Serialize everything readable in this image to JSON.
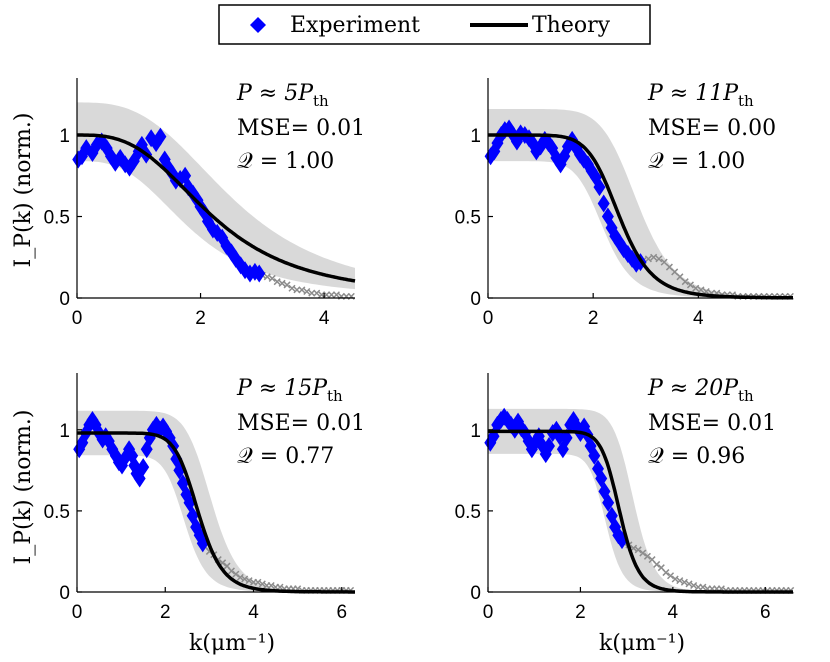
{
  "legend": {
    "experiment_label": "Experiment",
    "theory_label": "Theory"
  },
  "colors": {
    "experiment": "#0000ff",
    "theory": "#000000",
    "band": "#d9d9d9",
    "tail": "#8c8c8c"
  },
  "y_label": "I_P(k) (norm.)",
  "x_label": "k(μm⁻¹)",
  "chart_data": [
    {
      "type": "scatter",
      "panel": "top-left",
      "annotation": {
        "p_label": "P ≈ 5P",
        "p_sub": "th",
        "mse_label": "MSE= 0.01",
        "q_label": "𝒬 = 1.00"
      },
      "xlim": [
        0,
        4.5
      ],
      "ylim": [
        0,
        1.35
      ],
      "xticks": [
        0,
        2,
        4
      ],
      "yticks": [
        0,
        0.5,
        1
      ],
      "theory": {
        "A": 1.0,
        "k0": 2.2,
        "p": 3.0
      },
      "band": {
        "lower_scale": 0.84,
        "upper_scale": 1.2,
        "lower_shift": -0.35,
        "upper_shift": 0.35
      },
      "experiment": [
        [
          0.02,
          0.85
        ],
        [
          0.08,
          0.87
        ],
        [
          0.15,
          0.92
        ],
        [
          0.25,
          0.89
        ],
        [
          0.32,
          0.94
        ],
        [
          0.4,
          0.96
        ],
        [
          0.48,
          0.92
        ],
        [
          0.55,
          0.87
        ],
        [
          0.62,
          0.83
        ],
        [
          0.7,
          0.86
        ],
        [
          0.78,
          0.82
        ],
        [
          0.85,
          0.8
        ],
        [
          0.92,
          0.84
        ],
        [
          1.0,
          0.9
        ],
        [
          1.05,
          0.94
        ],
        [
          1.12,
          0.88
        ],
        [
          1.2,
          0.98
        ],
        [
          1.28,
          0.95
        ],
        [
          1.35,
          0.99
        ],
        [
          1.42,
          0.85
        ],
        [
          1.48,
          0.8
        ],
        [
          1.55,
          0.76
        ],
        [
          1.6,
          0.72
        ],
        [
          1.67,
          0.73
        ],
        [
          1.75,
          0.75
        ],
        [
          1.8,
          0.68
        ],
        [
          1.88,
          0.64
        ],
        [
          1.95,
          0.6
        ],
        [
          2.0,
          0.56
        ],
        [
          2.07,
          0.52
        ],
        [
          2.12,
          0.47
        ],
        [
          2.2,
          0.42
        ],
        [
          2.27,
          0.4
        ],
        [
          2.35,
          0.37
        ],
        [
          2.42,
          0.32
        ],
        [
          2.5,
          0.28
        ],
        [
          2.57,
          0.24
        ],
        [
          2.65,
          0.2
        ],
        [
          2.72,
          0.17
        ],
        [
          2.8,
          0.15
        ],
        [
          2.88,
          0.16
        ],
        [
          2.95,
          0.15
        ]
      ],
      "tail": [
        [
          3.0,
          0.14
        ],
        [
          3.08,
          0.13
        ],
        [
          3.16,
          0.12
        ],
        [
          3.24,
          0.1
        ],
        [
          3.32,
          0.09
        ],
        [
          3.4,
          0.08
        ],
        [
          3.48,
          0.06
        ],
        [
          3.56,
          0.05
        ],
        [
          3.64,
          0.05
        ],
        [
          3.72,
          0.04
        ],
        [
          3.8,
          0.03
        ],
        [
          3.88,
          0.03
        ],
        [
          3.96,
          0.02
        ],
        [
          4.04,
          0.02
        ],
        [
          4.12,
          0.02
        ],
        [
          4.2,
          0.02
        ],
        [
          4.28,
          0.01
        ],
        [
          4.36,
          0.01
        ],
        [
          4.44,
          0.01
        ]
      ]
    },
    {
      "type": "scatter",
      "panel": "top-right",
      "annotation": {
        "p_label": "P ≈ 11P",
        "p_sub": "th",
        "mse_label": "MSE= 0.00",
        "q_label": "𝒬 = 1.00"
      },
      "xlim": [
        0,
        5.8
      ],
      "ylim": [
        0,
        1.35
      ],
      "xticks": [
        0,
        2,
        4
      ],
      "yticks": [
        0,
        0.5,
        1
      ],
      "theory": {
        "A": 1.0,
        "k0": 2.5,
        "p": 8.0
      },
      "band": {
        "lower_scale": 0.84,
        "upper_scale": 1.16,
        "lower_shift": -0.3,
        "upper_shift": 0.35
      },
      "experiment": [
        [
          0.05,
          0.87
        ],
        [
          0.12,
          0.9
        ],
        [
          0.18,
          0.95
        ],
        [
          0.25,
          1.0
        ],
        [
          0.32,
          1.03
        ],
        [
          0.4,
          1.04
        ],
        [
          0.48,
          1.0
        ],
        [
          0.55,
          0.96
        ],
        [
          0.62,
          1.01
        ],
        [
          0.7,
          1.0
        ],
        [
          0.78,
          0.98
        ],
        [
          0.85,
          0.95
        ],
        [
          0.92,
          0.9
        ],
        [
          1.0,
          0.93
        ],
        [
          1.08,
          0.97
        ],
        [
          1.15,
          0.95
        ],
        [
          1.22,
          0.92
        ],
        [
          1.3,
          0.86
        ],
        [
          1.38,
          0.82
        ],
        [
          1.45,
          0.87
        ],
        [
          1.52,
          0.93
        ],
        [
          1.6,
          0.97
        ],
        [
          1.68,
          0.92
        ],
        [
          1.75,
          0.88
        ],
        [
          1.82,
          0.85
        ],
        [
          1.9,
          0.82
        ],
        [
          1.97,
          0.78
        ],
        [
          2.05,
          0.74
        ],
        [
          2.12,
          0.68
        ],
        [
          2.2,
          0.58
        ],
        [
          2.28,
          0.5
        ],
        [
          2.35,
          0.43
        ],
        [
          2.42,
          0.38
        ],
        [
          2.5,
          0.34
        ],
        [
          2.58,
          0.3
        ],
        [
          2.66,
          0.27
        ],
        [
          2.74,
          0.24
        ],
        [
          2.82,
          0.21
        ],
        [
          2.9,
          0.22
        ]
      ],
      "tail": [
        [
          2.95,
          0.23
        ],
        [
          3.05,
          0.24
        ],
        [
          3.15,
          0.25
        ],
        [
          3.25,
          0.24
        ],
        [
          3.35,
          0.22
        ],
        [
          3.45,
          0.19
        ],
        [
          3.55,
          0.16
        ],
        [
          3.65,
          0.13
        ],
        [
          3.75,
          0.1
        ],
        [
          3.85,
          0.08
        ],
        [
          3.95,
          0.06
        ],
        [
          4.05,
          0.05
        ],
        [
          4.15,
          0.04
        ],
        [
          4.25,
          0.03
        ],
        [
          4.35,
          0.03
        ],
        [
          4.45,
          0.02
        ],
        [
          4.55,
          0.02
        ],
        [
          4.65,
          0.02
        ],
        [
          4.75,
          0.01
        ],
        [
          4.85,
          0.01
        ],
        [
          4.95,
          0.01
        ],
        [
          5.05,
          0.01
        ],
        [
          5.15,
          0.01
        ],
        [
          5.25,
          0.01
        ],
        [
          5.35,
          0.01
        ],
        [
          5.45,
          0.01
        ],
        [
          5.55,
          0.01
        ],
        [
          5.65,
          0.01
        ],
        [
          5.75,
          0.01
        ]
      ]
    },
    {
      "type": "scatter",
      "panel": "bottom-left",
      "annotation": {
        "p_label": "P ≈ 15P",
        "p_sub": "th",
        "mse_label": "MSE= 0.01",
        "q_label": "𝒬 = 0.77"
      },
      "xlim": [
        0,
        6.3
      ],
      "ylim": [
        0,
        1.35
      ],
      "xticks": [
        0,
        2,
        4,
        6
      ],
      "yticks": [
        0,
        0.5,
        1
      ],
      "theory": {
        "A": 0.98,
        "k0": 2.75,
        "p": 10.0
      },
      "band": {
        "lower_scale": 0.86,
        "upper_scale": 1.14,
        "lower_shift": -0.3,
        "upper_shift": 0.3
      },
      "experiment": [
        [
          0.05,
          0.88
        ],
        [
          0.12,
          0.92
        ],
        [
          0.2,
          0.98
        ],
        [
          0.28,
          1.03
        ],
        [
          0.35,
          1.06
        ],
        [
          0.42,
          1.03
        ],
        [
          0.5,
          0.98
        ],
        [
          0.58,
          0.94
        ],
        [
          0.65,
          0.96
        ],
        [
          0.72,
          0.93
        ],
        [
          0.8,
          0.88
        ],
        [
          0.88,
          0.84
        ],
        [
          0.95,
          0.8
        ],
        [
          1.02,
          0.78
        ],
        [
          1.1,
          0.83
        ],
        [
          1.18,
          0.88
        ],
        [
          1.25,
          0.84
        ],
        [
          1.3,
          0.78
        ],
        [
          1.35,
          0.73
        ],
        [
          1.42,
          0.7
        ],
        [
          1.5,
          0.77
        ],
        [
          1.58,
          0.88
        ],
        [
          1.65,
          0.95
        ],
        [
          1.72,
          1.0
        ],
        [
          1.8,
          1.03
        ],
        [
          1.88,
          1.0
        ],
        [
          1.95,
          1.02
        ],
        [
          2.02,
          0.99
        ],
        [
          2.1,
          0.95
        ],
        [
          2.18,
          0.9
        ],
        [
          2.25,
          0.82
        ],
        [
          2.32,
          0.75
        ],
        [
          2.4,
          0.67
        ],
        [
          2.48,
          0.6
        ],
        [
          2.55,
          0.55
        ],
        [
          2.62,
          0.47
        ],
        [
          2.7,
          0.4
        ],
        [
          2.78,
          0.35
        ],
        [
          2.85,
          0.3
        ]
      ],
      "tail": [
        [
          2.9,
          0.28
        ],
        [
          3.0,
          0.25
        ],
        [
          3.1,
          0.23
        ],
        [
          3.2,
          0.2
        ],
        [
          3.3,
          0.18
        ],
        [
          3.4,
          0.16
        ],
        [
          3.5,
          0.13
        ],
        [
          3.6,
          0.11
        ],
        [
          3.7,
          0.09
        ],
        [
          3.8,
          0.08
        ],
        [
          3.9,
          0.07
        ],
        [
          4.0,
          0.06
        ],
        [
          4.1,
          0.06
        ],
        [
          4.2,
          0.05
        ],
        [
          4.3,
          0.04
        ],
        [
          4.4,
          0.04
        ],
        [
          4.5,
          0.03
        ],
        [
          4.6,
          0.03
        ],
        [
          4.7,
          0.02
        ],
        [
          4.8,
          0.02
        ],
        [
          4.9,
          0.02
        ],
        [
          5.0,
          0.02
        ],
        [
          5.1,
          0.01
        ],
        [
          5.2,
          0.01
        ],
        [
          5.3,
          0.01
        ],
        [
          5.4,
          0.01
        ],
        [
          5.5,
          0.01
        ],
        [
          5.6,
          0.01
        ],
        [
          5.7,
          0.01
        ],
        [
          5.8,
          0.01
        ],
        [
          5.9,
          0.01
        ],
        [
          6.0,
          0.01
        ],
        [
          6.1,
          0.01
        ],
        [
          6.2,
          0.01
        ]
      ]
    },
    {
      "type": "scatter",
      "panel": "bottom-right",
      "annotation": {
        "p_label": "P ≈ 20P",
        "p_sub": "th",
        "mse_label": "MSE= 0.01",
        "q_label": "𝒬 = 0.96"
      },
      "xlim": [
        0,
        6.6
      ],
      "ylim": [
        0,
        1.35
      ],
      "xticks": [
        0,
        2,
        4,
        6
      ],
      "yticks": [
        0,
        0.5,
        1
      ],
      "theory": {
        "A": 0.99,
        "k0": 2.85,
        "p": 14.0
      },
      "band": {
        "lower_scale": 0.86,
        "upper_scale": 1.14,
        "lower_shift": -0.3,
        "upper_shift": 0.3
      },
      "experiment": [
        [
          0.05,
          0.92
        ],
        [
          0.12,
          0.96
        ],
        [
          0.2,
          1.03
        ],
        [
          0.28,
          1.06
        ],
        [
          0.35,
          1.08
        ],
        [
          0.42,
          1.06
        ],
        [
          0.5,
          1.03
        ],
        [
          0.58,
          1.0
        ],
        [
          0.65,
          1.05
        ],
        [
          0.72,
          1.01
        ],
        [
          0.8,
          0.98
        ],
        [
          0.88,
          0.93
        ],
        [
          0.95,
          0.88
        ],
        [
          1.02,
          0.92
        ],
        [
          1.1,
          0.96
        ],
        [
          1.18,
          0.9
        ],
        [
          1.25,
          0.85
        ],
        [
          1.32,
          0.9
        ],
        [
          1.4,
          0.98
        ],
        [
          1.48,
          1.0
        ],
        [
          1.55,
          0.96
        ],
        [
          1.62,
          0.88
        ],
        [
          1.7,
          0.95
        ],
        [
          1.78,
          1.03
        ],
        [
          1.85,
          1.06
        ],
        [
          1.92,
          1.02
        ],
        [
          2.0,
          0.98
        ],
        [
          2.08,
          1.02
        ],
        [
          2.15,
          0.97
        ],
        [
          2.22,
          0.9
        ],
        [
          2.3,
          0.84
        ],
        [
          2.38,
          0.76
        ],
        [
          2.45,
          0.7
        ],
        [
          2.52,
          0.62
        ],
        [
          2.6,
          0.55
        ],
        [
          2.68,
          0.47
        ],
        [
          2.75,
          0.4
        ],
        [
          2.82,
          0.35
        ],
        [
          2.9,
          0.32
        ]
      ],
      "tail": [
        [
          2.95,
          0.3
        ],
        [
          3.05,
          0.29
        ],
        [
          3.15,
          0.27
        ],
        [
          3.25,
          0.26
        ],
        [
          3.35,
          0.24
        ],
        [
          3.45,
          0.22
        ],
        [
          3.55,
          0.2
        ],
        [
          3.65,
          0.17
        ],
        [
          3.75,
          0.15
        ],
        [
          3.85,
          0.12
        ],
        [
          3.95,
          0.1
        ],
        [
          4.05,
          0.08
        ],
        [
          4.15,
          0.07
        ],
        [
          4.25,
          0.06
        ],
        [
          4.35,
          0.05
        ],
        [
          4.45,
          0.04
        ],
        [
          4.55,
          0.03
        ],
        [
          4.65,
          0.03
        ],
        [
          4.75,
          0.02
        ],
        [
          4.85,
          0.02
        ],
        [
          4.95,
          0.02
        ],
        [
          5.05,
          0.02
        ],
        [
          5.15,
          0.01
        ],
        [
          5.25,
          0.01
        ],
        [
          5.35,
          0.01
        ],
        [
          5.45,
          0.01
        ],
        [
          5.55,
          0.01
        ],
        [
          5.65,
          0.01
        ],
        [
          5.75,
          0.01
        ],
        [
          5.85,
          0.01
        ],
        [
          5.95,
          0.01
        ],
        [
          6.05,
          0.01
        ],
        [
          6.15,
          0.01
        ],
        [
          6.25,
          0.01
        ],
        [
          6.35,
          0.01
        ],
        [
          6.45,
          0.01
        ],
        [
          6.55,
          0.01
        ]
      ]
    }
  ]
}
